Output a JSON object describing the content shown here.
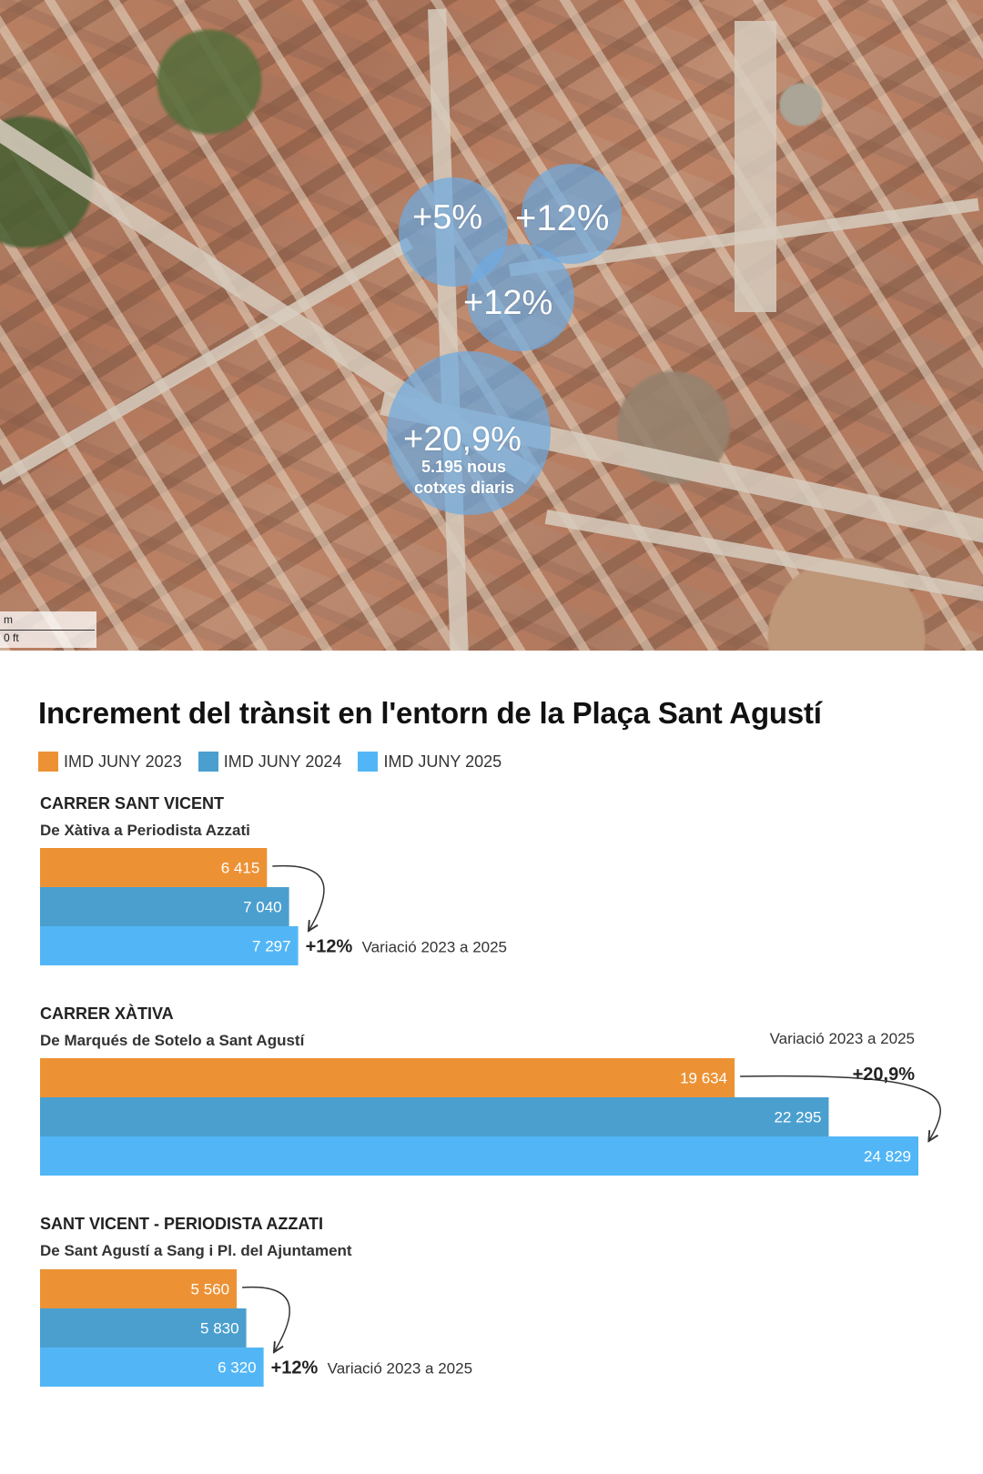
{
  "map": {
    "bubbles": [
      {
        "id": "b1",
        "label": "+5%"
      },
      {
        "id": "b2",
        "label": "+12%"
      },
      {
        "id": "b3",
        "label": "+12%"
      },
      {
        "id": "b4",
        "label": "+20,9%",
        "sublabel_1": "5.195 nous",
        "sublabel_2": "cotxes diaris"
      }
    ],
    "scale": {
      "unit_m": "m",
      "unit_ft": "0 ft"
    }
  },
  "colors": {
    "y2023": "#ec9235",
    "y2024": "#4a9fcf",
    "y2025": "#52b6f6"
  },
  "chart_data": {
    "type": "bar",
    "orientation": "horizontal",
    "title": "Increment del trànsit en l'entorn de la Plaça Sant Agustí",
    "legend": [
      "IMD JUNY 2023",
      "IMD JUNY 2024",
      "IMD JUNY 2025"
    ],
    "groups": [
      {
        "name": "CARRER SANT VICENT",
        "subtitle": "De Xàtiva a Periodista Azzati",
        "values": [
          6415,
          7040,
          7297
        ],
        "labels": [
          "6 415",
          "7 040",
          "7 297"
        ],
        "variation_pct": "+12%",
        "variation_text": "Variació 2023 a 2025"
      },
      {
        "name": "CARRER XÀTIVA",
        "subtitle": "De Marqués de Sotelo a Sant Agustí",
        "values": [
          19634,
          22295,
          24829
        ],
        "labels": [
          "19 634",
          "22 295",
          "24 829"
        ],
        "variation_pct": "+20,9%",
        "variation_text": "Variació 2023 a 2025"
      },
      {
        "name": "SANT VICENT - PERIODISTA AZZATI",
        "subtitle": "De Sant Agustí a Sang i Pl. del Ajuntament",
        "values": [
          5560,
          5830,
          6320
        ],
        "labels": [
          "5 560",
          "5 830",
          "6 320"
        ],
        "variation_pct": "+12%",
        "variation_text": "Variació 2023 a 2025"
      }
    ]
  }
}
